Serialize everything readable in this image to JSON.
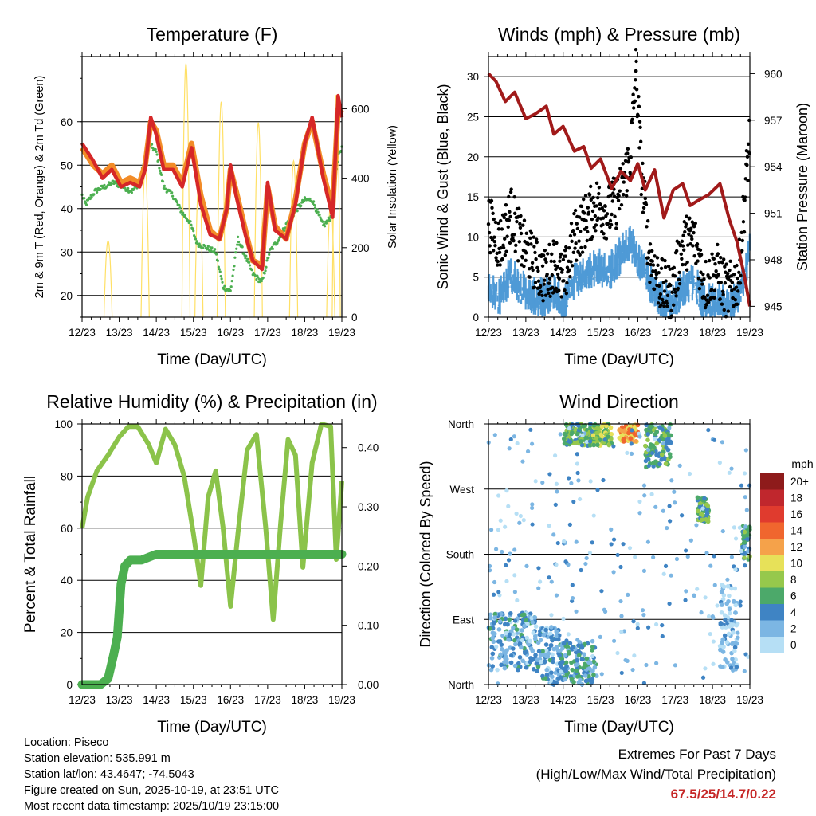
{
  "chart_data": [
    {
      "type": "line",
      "id": "temperature",
      "title": "Temperature (F)",
      "xlabel": "Time (Day/UTC)",
      "ylabel": "2m & 9m T (Red, Orange) & 2m Td (Green)",
      "y2label": "Solar Insolation (Yellow)",
      "x_ticks": [
        "12/23",
        "13/23",
        "14/23",
        "15/23",
        "16/23",
        "17/23",
        "18/23",
        "19/23"
      ],
      "xlim": [
        0,
        7
      ],
      "ylim": [
        15,
        75
      ],
      "y_ticks": [
        20,
        30,
        40,
        50,
        60
      ],
      "y2lim": [
        0,
        750
      ],
      "y2_ticks": [
        0,
        200,
        400,
        600
      ],
      "series": [
        {
          "name": "9m T",
          "color": "#f28c28",
          "x": [
            0,
            0.3,
            0.55,
            0.8,
            1.05,
            1.3,
            1.55,
            1.7,
            1.85,
            2.0,
            2.2,
            2.45,
            2.7,
            2.95,
            3.2,
            3.45,
            3.7,
            3.9,
            4.0,
            4.15,
            4.4,
            4.6,
            4.85,
            5.0,
            5.2,
            5.5,
            5.75,
            6.0,
            6.2,
            6.5,
            6.75,
            6.9,
            7.0
          ],
          "y": [
            54,
            50,
            48,
            50,
            46,
            47,
            46,
            50,
            60,
            58,
            50,
            50,
            46,
            55,
            43,
            35,
            33,
            40,
            49,
            44,
            35,
            28,
            27,
            45,
            36,
            33,
            42,
            55,
            60,
            48,
            40,
            63,
            62
          ]
        },
        {
          "name": "2m T",
          "color": "#d62728",
          "x": [
            0,
            0.3,
            0.55,
            0.8,
            1.05,
            1.3,
            1.55,
            1.7,
            1.85,
            2.0,
            2.2,
            2.45,
            2.7,
            2.95,
            3.2,
            3.45,
            3.7,
            3.9,
            4.0,
            4.15,
            4.4,
            4.6,
            4.85,
            5.0,
            5.2,
            5.5,
            5.75,
            6.0,
            6.2,
            6.5,
            6.75,
            6.9,
            7.0
          ],
          "y": [
            55,
            51,
            47,
            49,
            45,
            46,
            45,
            49,
            61,
            57,
            49,
            49,
            45,
            54,
            41,
            34,
            33,
            40,
            50,
            43,
            34,
            28,
            26,
            46,
            35,
            33,
            41,
            55,
            61,
            47,
            38,
            66,
            61
          ]
        },
        {
          "name": "2m Td",
          "color": "#4caf50",
          "x": [
            0,
            0.1,
            0.35,
            0.6,
            0.85,
            1.1,
            1.35,
            1.55,
            1.7,
            1.8,
            2.0,
            2.2,
            2.45,
            2.7,
            2.9,
            3.1,
            3.35,
            3.6,
            3.8,
            4.0,
            4.2,
            4.45,
            4.6,
            4.85,
            5.05,
            5.3,
            5.55,
            5.8,
            6.0,
            6.2,
            6.5,
            6.7,
            6.9,
            7.0
          ],
          "y": [
            43,
            41,
            44,
            45,
            46,
            45,
            44,
            46,
            52,
            55,
            53,
            45,
            43,
            39,
            37,
            32,
            31,
            30,
            22,
            21,
            33,
            28,
            25,
            23,
            30,
            33,
            37,
            40,
            42,
            42,
            36,
            38,
            52,
            54
          ]
        },
        {
          "name": "Solar Insolation",
          "color": "#ffe066",
          "axis": "y2",
          "peaks": [
            [
              0.7,
              220
            ],
            [
              1.7,
              430
            ],
            [
              2.8,
              730
            ],
            [
              3.15,
              400
            ],
            [
              3.75,
              620
            ],
            [
              4.75,
              560
            ],
            [
              5.7,
              450
            ],
            [
              6.7,
              330
            ],
            [
              6.85,
              640
            ]
          ]
        }
      ]
    },
    {
      "type": "scatter",
      "id": "winds",
      "title": "Winds (mph) & Pressure (mb)",
      "xlabel": "Time (Day/UTC)",
      "ylabel": "Sonic Wind & Gust (Blue, Black)",
      "y2label": "Station Pressure (Maroon)",
      "x_ticks": [
        "12/23",
        "13/23",
        "14/23",
        "15/23",
        "16/23",
        "17/23",
        "18/23",
        "19/23"
      ],
      "xlim": [
        0,
        7
      ],
      "ylim": [
        0,
        32.5
      ],
      "y_ticks": [
        0,
        5,
        10,
        15,
        20,
        25,
        30
      ],
      "y2lim": [
        944.3,
        961.1
      ],
      "y2_ticks": [
        945,
        948,
        951,
        954,
        957,
        960
      ],
      "series": [
        {
          "name": "Sonic Wind",
          "color": "#4f9ad6",
          "x": [
            0,
            0.3,
            0.6,
            0.9,
            1.2,
            1.5,
            1.8,
            2.0,
            2.3,
            2.6,
            2.9,
            3.2,
            3.5,
            3.8,
            4.0,
            4.3,
            4.6,
            4.9,
            5.2,
            5.5,
            5.8,
            6.1,
            6.4,
            6.7,
            7.0
          ],
          "y": [
            4,
            3,
            6,
            4,
            3,
            3,
            4,
            2,
            5,
            6,
            7,
            6,
            8,
            10,
            8,
            5,
            3,
            2,
            4,
            5,
            2,
            3,
            2,
            3,
            9
          ]
        },
        {
          "name": "Gust",
          "color": "#000000",
          "x": [
            0,
            0.3,
            0.6,
            0.9,
            1.2,
            1.5,
            1.8,
            2.0,
            2.3,
            2.6,
            2.9,
            3.2,
            3.5,
            3.8,
            3.95,
            4.1,
            4.3,
            4.6,
            4.9,
            5.2,
            5.5,
            5.8,
            6.1,
            6.4,
            6.7,
            7.0
          ],
          "y": [
            12,
            9,
            13,
            9,
            7,
            5,
            7,
            4,
            10,
            12,
            14,
            13,
            15,
            20,
            30.7,
            18,
            8,
            4,
            3,
            9,
            10,
            4,
            6,
            3,
            5,
            23
          ]
        },
        {
          "name": "Station Pressure",
          "color": "#a11a1a",
          "axis": "y2",
          "x": [
            0,
            0.2,
            0.45,
            0.7,
            1.0,
            1.25,
            1.55,
            1.75,
            2.0,
            2.3,
            2.55,
            2.75,
            3.0,
            3.3,
            3.55,
            3.8,
            4.0,
            4.2,
            4.45,
            4.7,
            4.95,
            5.2,
            5.4,
            5.6,
            5.9,
            6.2,
            6.45,
            6.65,
            6.85,
            7.0
          ],
          "y": [
            960,
            959.5,
            958.2,
            958.8,
            957.1,
            957.4,
            957.9,
            956.1,
            956.6,
            955,
            955.3,
            953.9,
            954.5,
            952.6,
            953.7,
            953.1,
            954.2,
            952.5,
            953.8,
            950.7,
            952.5,
            952.9,
            951.5,
            951.8,
            952.2,
            952.9,
            950.6,
            949.2,
            947,
            945
          ]
        }
      ]
    },
    {
      "type": "line",
      "id": "humidity",
      "title": "Relative Humidity (%) & Precipitation (in)",
      "xlabel": "Time (Day/UTC)",
      "ylabel": "Percent & Total Rainfall",
      "x_ticks": [
        "12/23",
        "13/23",
        "14/23",
        "15/23",
        "16/23",
        "17/23",
        "18/23",
        "19/23"
      ],
      "xlim": [
        0,
        7
      ],
      "ylim": [
        0,
        100
      ],
      "y_ticks": [
        0,
        20,
        40,
        60,
        80,
        100
      ],
      "y2lim": [
        0,
        0.44
      ],
      "y2_ticks": [
        "0.00",
        "0.10",
        "0.20",
        "0.30",
        "0.40"
      ],
      "series": [
        {
          "name": "Relative Humidity",
          "color": "#8bc34a",
          "x": [
            0,
            0.15,
            0.4,
            0.7,
            1.0,
            1.25,
            1.5,
            1.8,
            2.0,
            2.25,
            2.5,
            2.75,
            3.0,
            3.2,
            3.4,
            3.6,
            3.8,
            4.0,
            4.2,
            4.45,
            4.7,
            4.95,
            5.15,
            5.35,
            5.55,
            5.75,
            5.95,
            6.2,
            6.45,
            6.7,
            6.85,
            7.0
          ],
          "y": [
            60,
            72,
            82,
            88,
            95,
            99,
            99,
            92,
            85,
            98,
            92,
            80,
            58,
            38,
            72,
            82,
            60,
            30,
            58,
            90,
            96,
            60,
            25,
            62,
            94,
            88,
            45,
            85,
            100,
            99,
            48,
            78
          ]
        },
        {
          "name": "Total Precipitation",
          "color": "#4caf50",
          "axis": "y2",
          "x": [
            0,
            0.5,
            0.7,
            0.85,
            0.95,
            1.05,
            1.15,
            1.3,
            1.6,
            2.0,
            7.0
          ],
          "y": [
            0,
            0,
            0.01,
            0.05,
            0.08,
            0.17,
            0.2,
            0.21,
            0.21,
            0.22,
            0.22
          ]
        }
      ]
    },
    {
      "type": "scatter",
      "id": "wind_direction",
      "title": "Wind Direction",
      "xlabel": "Time (Day/UTC)",
      "ylabel": "Direction (Colored By Speed)",
      "x_ticks": [
        "12/23",
        "13/23",
        "14/23",
        "15/23",
        "16/23",
        "17/23",
        "18/23",
        "19/23"
      ],
      "xlim": [
        0,
        7
      ],
      "y_ticks": [
        "North",
        "East",
        "South",
        "West",
        "North"
      ],
      "colorbar": {
        "label": "mph",
        "levels": [
          "20+",
          "18",
          "16",
          "14",
          "12",
          "10",
          "8",
          "6",
          "4",
          "2",
          "0"
        ],
        "colors": [
          "#8e1b1b",
          "#c0272d",
          "#e03b2e",
          "#f0662e",
          "#f5a24a",
          "#e7e159",
          "#96c84c",
          "#4ca96a",
          "#3f84c4",
          "#7cb6e3",
          "#b6dff5"
        ]
      },
      "clusters": [
        {
          "x": [
            0,
            1.3
          ],
          "dir": [
            20,
            100
          ],
          "speed": 3
        },
        {
          "x": [
            1.3,
            1.9
          ],
          "dir": [
            0,
            80
          ],
          "speed": 3
        },
        {
          "x": [
            1.9,
            2.9
          ],
          "dir": [
            0,
            60
          ],
          "speed": 4
        },
        {
          "x": [
            2.0,
            2.9
          ],
          "dir": [
            330,
            360
          ],
          "speed": 6
        },
        {
          "x": [
            2.8,
            3.3
          ],
          "dir": [
            330,
            360
          ],
          "speed": 8
        },
        {
          "x": [
            3.5,
            4.0
          ],
          "dir": [
            335,
            360
          ],
          "speed": 12
        },
        {
          "x": [
            4.2,
            4.9
          ],
          "dir": [
            300,
            360
          ],
          "speed": 6
        },
        {
          "x": [
            5.6,
            5.9
          ],
          "dir": [
            225,
            260
          ],
          "speed": 6
        },
        {
          "x": [
            6.8,
            7.0
          ],
          "dir": [
            170,
            220
          ],
          "speed": 5
        },
        {
          "x": [
            6.2,
            6.7
          ],
          "dir": [
            20,
            140
          ],
          "speed": 1
        }
      ]
    }
  ],
  "info": {
    "location": "Location: Piseco",
    "elevation": "Station elevation: 535.991 m",
    "latlon": "Station lat/lon: 43.4647; -74.5043",
    "created": "Figure created on Sun, 2025-10-19, at 23:51 UTC",
    "recent": "Most recent data timestamp: 2025/10/19 23:15:00"
  },
  "extremes": {
    "title": "Extremes For Past 7 Days",
    "subtitle": "(High/Low/Max Wind/Total Precipitation)",
    "values": "67.5/25/14.7/0.22"
  }
}
